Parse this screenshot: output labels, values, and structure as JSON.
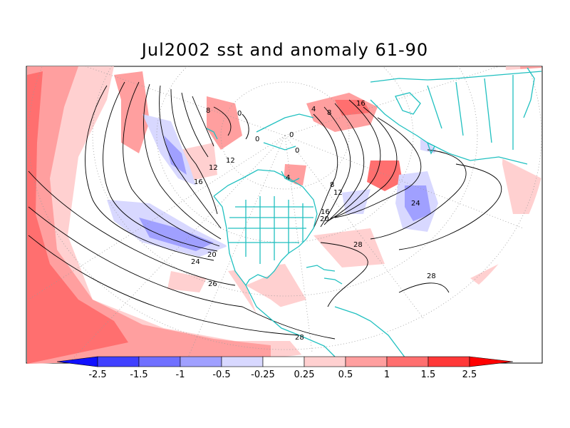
{
  "title": "Jul2002 sst and anomaly 61-90",
  "colorbar": {
    "labels": [
      "-2.5",
      "-1.5",
      "-1",
      "-0.5",
      "-0.25",
      "0.25",
      "0.5",
      "1",
      "1.5",
      "2.5"
    ],
    "colors": [
      "#1010ff",
      "#4040ff",
      "#7070ff",
      "#a0a0ff",
      "#d8d8ff",
      "#ffffff",
      "#ffd0d0",
      "#ff9f9f",
      "#ff6f6f",
      "#ff3838",
      "#ff0000"
    ]
  },
  "contour_labels": [
    "8",
    "0",
    "0",
    "12",
    "16",
    "12",
    "20",
    "24",
    "26",
    "4",
    "8",
    "16",
    "0",
    "0",
    "4",
    "8",
    "12",
    "16",
    "20",
    "24",
    "28",
    "28",
    "28"
  ],
  "colors": {
    "coastline": "#20c0c0",
    "contour": "#000000",
    "grid": "#9a9a9a"
  }
}
